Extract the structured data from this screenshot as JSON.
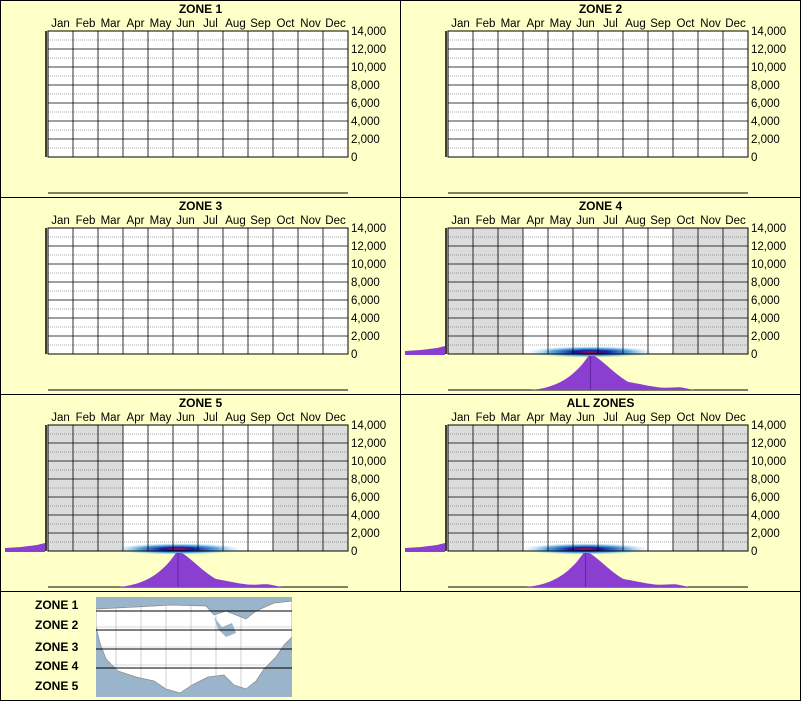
{
  "chart_data": [
    {
      "type": "heatmap",
      "title": "ZONE 1",
      "categories": [
        "Jan",
        "Feb",
        "Mar",
        "Apr",
        "May",
        "Jun",
        "Jul",
        "Aug",
        "Sep",
        "Oct",
        "Nov",
        "Dec"
      ],
      "y_ticks": [
        "14,000",
        "12,000",
        "10,000",
        "8,000",
        "6,000",
        "4,000",
        "2,000",
        "0"
      ],
      "ylim": [
        0,
        14000
      ],
      "shaded_months": [],
      "density": null
    },
    {
      "type": "heatmap",
      "title": "ZONE 2",
      "categories": [
        "Jan",
        "Feb",
        "Mar",
        "Apr",
        "May",
        "Jun",
        "Jul",
        "Aug",
        "Sep",
        "Oct",
        "Nov",
        "Dec"
      ],
      "y_ticks": [
        "14,000",
        "12,000",
        "10,000",
        "8,000",
        "6,000",
        "4,000",
        "2,000",
        "0"
      ],
      "ylim": [
        0,
        14000
      ],
      "shaded_months": [],
      "density": null
    },
    {
      "type": "heatmap",
      "title": "ZONE 3",
      "categories": [
        "Jan",
        "Feb",
        "Mar",
        "Apr",
        "May",
        "Jun",
        "Jul",
        "Aug",
        "Sep",
        "Oct",
        "Nov",
        "Dec"
      ],
      "y_ticks": [
        "14,000",
        "12,000",
        "10,000",
        "8,000",
        "6,000",
        "4,000",
        "2,000",
        "0"
      ],
      "ylim": [
        0,
        14000
      ],
      "shaded_months": [],
      "density": null
    },
    {
      "type": "heatmap",
      "title": "ZONE 4",
      "categories": [
        "Jan",
        "Feb",
        "Mar",
        "Apr",
        "May",
        "Jun",
        "Jul",
        "Aug",
        "Sep",
        "Oct",
        "Nov",
        "Dec"
      ],
      "y_ticks": [
        "14,000",
        "12,000",
        "10,000",
        "8,000",
        "6,000",
        "4,000",
        "2,000",
        "0"
      ],
      "ylim": [
        0,
        14000
      ],
      "shaded_months": [
        "Jan",
        "Feb",
        "Mar",
        "Oct",
        "Nov",
        "Dec"
      ],
      "density": {
        "peak_month": 5.2,
        "peak_elevation": 0
      }
    },
    {
      "type": "heatmap",
      "title": "ZONE 5",
      "categories": [
        "Jan",
        "Feb",
        "Mar",
        "Apr",
        "May",
        "Jun",
        "Jul",
        "Aug",
        "Sep",
        "Oct",
        "Nov",
        "Dec"
      ],
      "y_ticks": [
        "14,000",
        "12,000",
        "10,000",
        "8,000",
        "6,000",
        "4,000",
        "2,000",
        "0"
      ],
      "ylim": [
        0,
        14000
      ],
      "shaded_months": [
        "Jan",
        "Feb",
        "Mar",
        "Oct",
        "Nov",
        "Dec"
      ],
      "density": {
        "peak_month": 4.7,
        "peak_elevation": 0
      }
    },
    {
      "type": "heatmap",
      "title": "ALL ZONES",
      "categories": [
        "Jan",
        "Feb",
        "Mar",
        "Apr",
        "May",
        "Jun",
        "Jul",
        "Aug",
        "Sep",
        "Oct",
        "Nov",
        "Dec"
      ],
      "y_ticks": [
        "14,000",
        "12,000",
        "10,000",
        "8,000",
        "6,000",
        "4,000",
        "2,000",
        "0"
      ],
      "ylim": [
        0,
        14000
      ],
      "shaded_months": [
        "Jan",
        "Feb",
        "Mar",
        "Oct",
        "Nov",
        "Dec"
      ],
      "density": {
        "peak_month": 5.0,
        "peak_elevation": 0
      }
    }
  ],
  "legend": {
    "zones": [
      "ZONE 1",
      "ZONE 2",
      "ZONE 3",
      "ZONE 4",
      "ZONE 5"
    ]
  },
  "colors": {
    "background": "#ffffc8",
    "shade": "#dcdcdc",
    "violet": "#8a3fd1",
    "heat_core": "#0b1aa0",
    "heat_hot": "#cc0044",
    "map_water": "#9ab4cc",
    "map_land": "#ffffff"
  }
}
